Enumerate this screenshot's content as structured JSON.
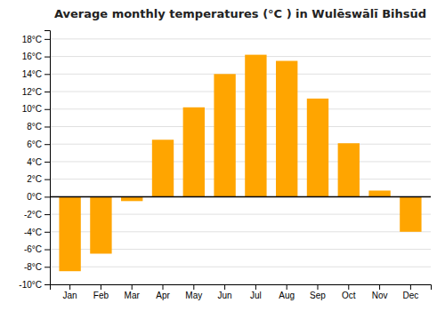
{
  "chart_data": {
    "type": "bar",
    "title": "Average monthly temperatures (°C ) in Wulēswālī Bihsūd",
    "categories": [
      "Jan",
      "Feb",
      "Mar",
      "Apr",
      "May",
      "Jun",
      "Jul",
      "Aug",
      "Sep",
      "Oct",
      "Nov",
      "Dec"
    ],
    "values": [
      -8.5,
      -6.5,
      -0.5,
      6.5,
      10.2,
      14.0,
      16.2,
      15.5,
      11.2,
      6.1,
      0.7,
      -4.0
    ],
    "color": "#FFA500",
    "ylim": [
      -10,
      19
    ],
    "yticks": [
      {
        "value": -10,
        "label": "-10°C"
      },
      {
        "value": -8,
        "label": "-8°C"
      },
      {
        "value": -6,
        "label": "-6°C"
      },
      {
        "value": -4,
        "label": "-4°C"
      },
      {
        "value": -2,
        "label": "-2°C"
      },
      {
        "value": 0,
        "label": "0°C"
      },
      {
        "value": 2,
        "label": "2°C"
      },
      {
        "value": 4,
        "label": "4°C"
      },
      {
        "value": 6,
        "label": "6°C"
      },
      {
        "value": 8,
        "label": "8°C"
      },
      {
        "value": 10,
        "label": "10°C"
      },
      {
        "value": 12,
        "label": "12°C"
      },
      {
        "value": 14,
        "label": "14°C"
      },
      {
        "value": 16,
        "label": "16°C"
      },
      {
        "value": 18,
        "label": "18°C"
      }
    ],
    "grid": true
  }
}
